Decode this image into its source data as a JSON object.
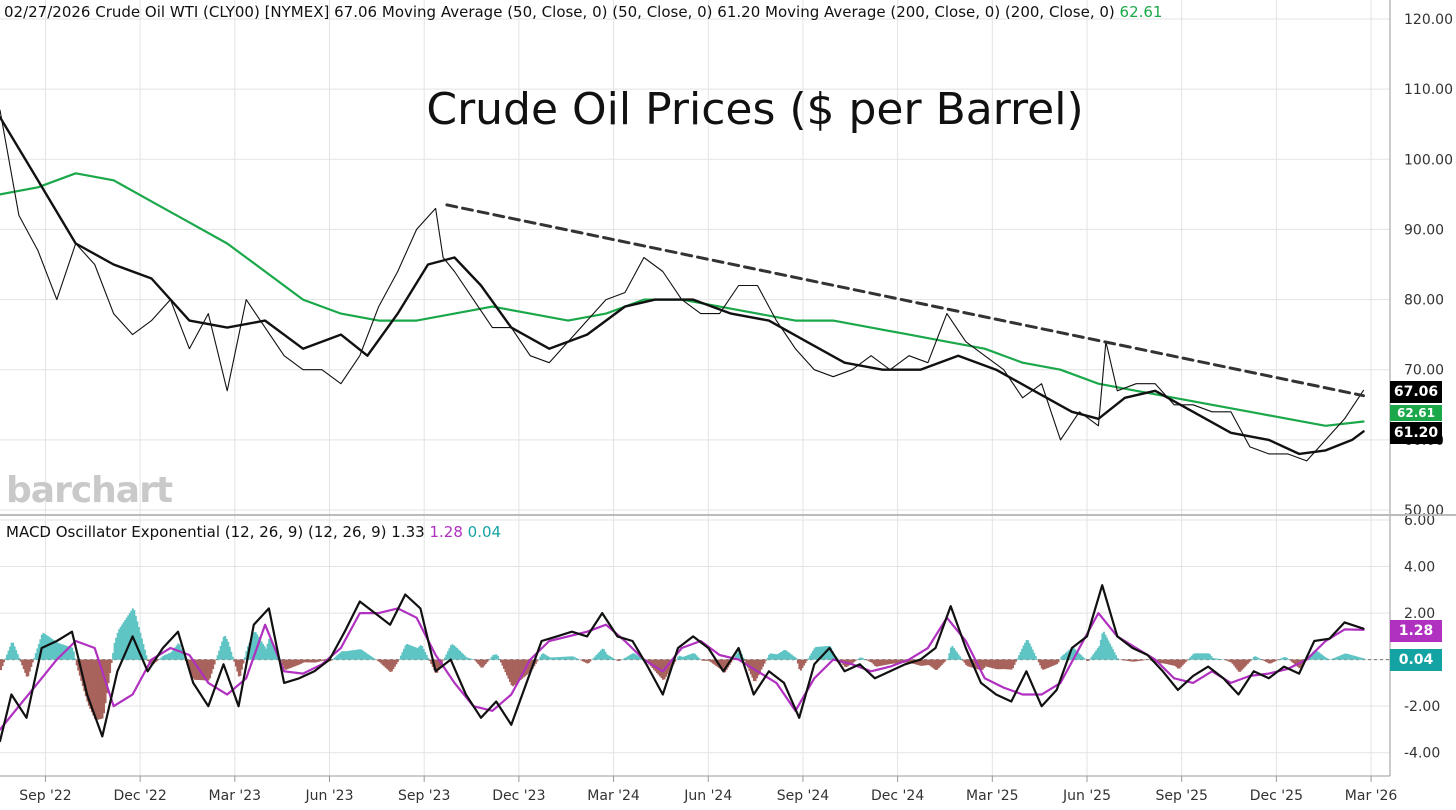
{
  "header": {
    "date": "02/27/2026",
    "symbol": "Crude Oil WTI (CLY00) [NYMEX]",
    "last": "67.06",
    "ma50_label": "Moving Average (50, Close, 0)  (50, Close, 0)",
    "ma50_value": "61.20",
    "ma200_label": "Moving Average (200, Close, 0)  (200, Close, 0)",
    "ma200_value": "62.61"
  },
  "macd_header": {
    "label": "MACD Oscillator Exponential (12, 26, 9)  (12, 26, 9)",
    "macd": "1.33",
    "signal": "1.28",
    "histogram": "0.04"
  },
  "brand": "barchart",
  "badges": {
    "price": "67.06",
    "ma200": "62.61",
    "ma50": "61.20",
    "signal": "1.28",
    "hist": "0.04"
  },
  "colors": {
    "price": "#111111",
    "ma200": "#1aa84a",
    "macd": "#111111",
    "signal": "#b030c0",
    "hist_pos": "#5fc4c4",
    "hist_neg": "#a8635c",
    "trend": "#333333"
  },
  "chart_data": [
    {
      "type": "line",
      "title": "Crude Oil Prices ($ per Barrel)",
      "ylim": [
        50,
        120
      ],
      "yticks": [
        "120.00",
        "110.00",
        "100.00",
        "90.00",
        "80.00",
        "70.00",
        "60.00",
        "50.00"
      ],
      "x_labels": [
        "Sep '22",
        "Dec '22",
        "Mar '23",
        "Jun '23",
        "Sep '23",
        "Dec '23",
        "Mar '24",
        "Jun '24",
        "Sep '24",
        "Dec '24",
        "Mar '25",
        "Jun '25",
        "Sep '25",
        "Dec '25",
        "Mar '26"
      ],
      "x_months": [
        2022.67,
        2022.92,
        2023.17,
        2023.42,
        2023.67,
        2023.92,
        2024.17,
        2024.42,
        2024.67,
        2024.92,
        2025.17,
        2025.42,
        2025.67,
        2025.92,
        2026.17
      ],
      "xlim": [
        2022.55,
        2026.22
      ],
      "series": [
        {
          "name": "Crude Oil WTI (CLY00)",
          "x": [
            2022.55,
            2022.6,
            2022.65,
            2022.7,
            2022.75,
            2022.8,
            2022.85,
            2022.9,
            2022.95,
            2023.0,
            2023.05,
            2023.1,
            2023.15,
            2023.2,
            2023.25,
            2023.3,
            2023.35,
            2023.4,
            2023.45,
            2023.5,
            2023.55,
            2023.6,
            2023.65,
            2023.7,
            2023.72,
            2023.75,
            2023.8,
            2023.85,
            2023.9,
            2023.95,
            2024.0,
            2024.05,
            2024.1,
            2024.15,
            2024.2,
            2024.25,
            2024.3,
            2024.35,
            2024.4,
            2024.45,
            2024.5,
            2024.55,
            2024.6,
            2024.65,
            2024.7,
            2024.75,
            2024.8,
            2024.85,
            2024.9,
            2024.95,
            2025.0,
            2025.05,
            2025.1,
            2025.15,
            2025.2,
            2025.25,
            2025.3,
            2025.35,
            2025.4,
            2025.45,
            2025.47,
            2025.5,
            2025.55,
            2025.6,
            2025.65,
            2025.7,
            2025.75,
            2025.8,
            2025.85,
            2025.9,
            2025.95,
            2026.0,
            2026.05,
            2026.1,
            2026.15
          ],
          "values": [
            107,
            92,
            87,
            80,
            88,
            85,
            78,
            75,
            77,
            80,
            73,
            78,
            67,
            80,
            76,
            72,
            70,
            70,
            68,
            72,
            79,
            84,
            90,
            93,
            86,
            84,
            80,
            76,
            76,
            72,
            71,
            74,
            77,
            80,
            81,
            86,
            84,
            80,
            78,
            78,
            82,
            82,
            77,
            73,
            70,
            69,
            70,
            72,
            70,
            72,
            71,
            78,
            74,
            72,
            70,
            66,
            68,
            60,
            64,
            62,
            74,
            67,
            68,
            68,
            65,
            65,
            64,
            64,
            59,
            58,
            58,
            57,
            60,
            63,
            67.06
          ]
        },
        {
          "name": "Moving Average (50, Close, 0)",
          "x": [
            2022.55,
            2022.65,
            2022.75,
            2022.85,
            2022.95,
            2023.05,
            2023.15,
            2023.25,
            2023.35,
            2023.45,
            2023.52,
            2023.6,
            2023.68,
            2023.75,
            2023.82,
            2023.9,
            2024.0,
            2024.1,
            2024.2,
            2024.28,
            2024.38,
            2024.48,
            2024.58,
            2024.68,
            2024.78,
            2024.88,
            2024.98,
            2025.08,
            2025.18,
            2025.28,
            2025.38,
            2025.45,
            2025.52,
            2025.6,
            2025.7,
            2025.8,
            2025.9,
            2025.98,
            2026.05,
            2026.12,
            2026.15
          ],
          "values": [
            106,
            97,
            88,
            85,
            83,
            77,
            76,
            77,
            73,
            75,
            72,
            78,
            85,
            86,
            82,
            76,
            73,
            75,
            79,
            80,
            80,
            78,
            77,
            74,
            71,
            70,
            70,
            72,
            70,
            67,
            64,
            63,
            66,
            67,
            64,
            61,
            60,
            58,
            58.5,
            60,
            61.2
          ]
        },
        {
          "name": "Moving Average (200, Close, 0)",
          "x": [
            2022.55,
            2022.65,
            2022.75,
            2022.85,
            2022.95,
            2023.05,
            2023.15,
            2023.25,
            2023.35,
            2023.45,
            2023.55,
            2023.65,
            2023.75,
            2023.85,
            2023.95,
            2024.05,
            2024.15,
            2024.25,
            2024.35,
            2024.45,
            2024.55,
            2024.65,
            2024.75,
            2024.85,
            2024.95,
            2025.05,
            2025.15,
            2025.25,
            2025.35,
            2025.45,
            2025.55,
            2025.65,
            2025.75,
            2025.85,
            2025.95,
            2026.05,
            2026.15
          ],
          "values": [
            95,
            96,
            98,
            97,
            94,
            91,
            88,
            84,
            80,
            78,
            77,
            77,
            78,
            79,
            78,
            77,
            78,
            80,
            80,
            79,
            78,
            77,
            77,
            76,
            75,
            74,
            73,
            71,
            70,
            68,
            67,
            66,
            65,
            64,
            63,
            62,
            62.61
          ]
        },
        {
          "name": "Trendline",
          "x": [
            2023.73,
            2026.15
          ],
          "values": [
            93.5,
            66.3
          ]
        }
      ]
    },
    {
      "type": "line",
      "title": "MACD Oscillator Exponential (12, 26, 9)",
      "ylim": [
        -5,
        6
      ],
      "yticks": [
        "6.00",
        "4.00",
        "2.00",
        "0.00",
        "-2.00",
        "-4.00"
      ],
      "series": [
        {
          "name": "MACD",
          "x": [
            2022.55,
            2022.58,
            2022.62,
            2022.66,
            2022.7,
            2022.74,
            2022.78,
            2022.82,
            2022.86,
            2022.9,
            2022.94,
            2022.98,
            2023.02,
            2023.06,
            2023.1,
            2023.14,
            2023.18,
            2023.22,
            2023.26,
            2023.3,
            2023.34,
            2023.38,
            2023.42,
            2023.46,
            2023.5,
            2023.54,
            2023.58,
            2023.62,
            2023.66,
            2023.7,
            2023.74,
            2023.78,
            2023.82,
            2023.86,
            2023.9,
            2023.94,
            2023.98,
            2024.02,
            2024.06,
            2024.1,
            2024.14,
            2024.18,
            2024.22,
            2024.26,
            2024.3,
            2024.34,
            2024.38,
            2024.42,
            2024.46,
            2024.5,
            2024.54,
            2024.58,
            2024.62,
            2024.66,
            2024.7,
            2024.74,
            2024.78,
            2024.82,
            2024.86,
            2024.9,
            2024.94,
            2024.98,
            2025.02,
            2025.06,
            2025.1,
            2025.14,
            2025.18,
            2025.22,
            2025.26,
            2025.3,
            2025.34,
            2025.38,
            2025.42,
            2025.46,
            2025.5,
            2025.54,
            2025.58,
            2025.62,
            2025.66,
            2025.7,
            2025.74,
            2025.78,
            2025.82,
            2025.86,
            2025.9,
            2025.94,
            2025.98,
            2026.02,
            2026.06,
            2026.1,
            2026.15
          ],
          "values": [
            -3.5,
            -1.5,
            -2.5,
            0.5,
            0.8,
            1.2,
            -1.5,
            -3.3,
            -0.5,
            1.0,
            -0.5,
            0.5,
            1.2,
            -1.0,
            -2.0,
            -0.2,
            -2.0,
            1.5,
            2.2,
            -1.0,
            -0.8,
            -0.5,
            0,
            1.2,
            2.5,
            2.0,
            1.5,
            2.8,
            2.2,
            -0.5,
            0,
            -1.5,
            -2.5,
            -1.8,
            -2.8,
            -1.0,
            0.8,
            1.0,
            1.2,
            1.0,
            2.0,
            1.0,
            0.8,
            -0.3,
            -1.5,
            0.5,
            1.0,
            0.5,
            -0.5,
            0.5,
            -1.5,
            -0.5,
            -1.0,
            -2.5,
            -0.2,
            0.5,
            -0.5,
            -0.2,
            -0.8,
            -0.5,
            -0.2,
            0,
            0.5,
            2.3,
            0.5,
            -1.0,
            -1.5,
            -1.8,
            -0.5,
            -2.0,
            -1.3,
            0.5,
            1.0,
            3.2,
            1.0,
            0.5,
            0.2,
            -0.5,
            -1.3,
            -0.7,
            -0.3,
            -0.8,
            -1.5,
            -0.5,
            -0.8,
            -0.3,
            -0.6,
            0.8,
            0.9,
            1.6,
            1.33
          ]
        },
        {
          "name": "Signal",
          "x": [
            2022.55,
            2022.6,
            2022.65,
            2022.7,
            2022.75,
            2022.8,
            2022.85,
            2022.9,
            2022.95,
            2023.0,
            2023.05,
            2023.1,
            2023.15,
            2023.2,
            2023.25,
            2023.3,
            2023.35,
            2023.4,
            2023.45,
            2023.5,
            2023.55,
            2023.6,
            2023.65,
            2023.7,
            2023.75,
            2023.8,
            2023.85,
            2023.9,
            2023.95,
            2024.0,
            2024.05,
            2024.1,
            2024.15,
            2024.2,
            2024.25,
            2024.3,
            2024.35,
            2024.4,
            2024.45,
            2024.5,
            2024.55,
            2024.6,
            2024.65,
            2024.7,
            2024.75,
            2024.8,
            2024.85,
            2024.9,
            2024.95,
            2025.0,
            2025.05,
            2025.1,
            2025.15,
            2025.2,
            2025.25,
            2025.3,
            2025.35,
            2025.4,
            2025.45,
            2025.5,
            2025.55,
            2025.6,
            2025.65,
            2025.7,
            2025.75,
            2025.8,
            2025.85,
            2025.9,
            2025.95,
            2026.0,
            2026.05,
            2026.1,
            2026.15
          ],
          "values": [
            -3.0,
            -2.0,
            -1.0,
            0.0,
            0.8,
            0.5,
            -2.0,
            -1.5,
            0.0,
            0.5,
            0.2,
            -1.0,
            -1.5,
            -0.8,
            1.5,
            -0.5,
            -0.6,
            -0.2,
            0.5,
            2.0,
            2.0,
            2.2,
            1.8,
            0.2,
            -1.0,
            -2.0,
            -2.2,
            -1.5,
            0.0,
            0.8,
            1.0,
            1.2,
            1.5,
            0.8,
            0.0,
            -0.5,
            0.5,
            0.8,
            0.2,
            0.0,
            -0.5,
            -1.0,
            -2.2,
            -0.8,
            0.0,
            -0.2,
            -0.5,
            -0.3,
            0.0,
            0.5,
            1.8,
            0.8,
            -0.8,
            -1.2,
            -1.5,
            -1.5,
            -1.0,
            0.5,
            2.0,
            1.0,
            0.5,
            0.0,
            -0.8,
            -1.0,
            -0.5,
            -1.0,
            -0.7,
            -0.6,
            -0.4,
            0.0,
            0.8,
            1.3,
            1.28
          ]
        }
      ]
    }
  ]
}
